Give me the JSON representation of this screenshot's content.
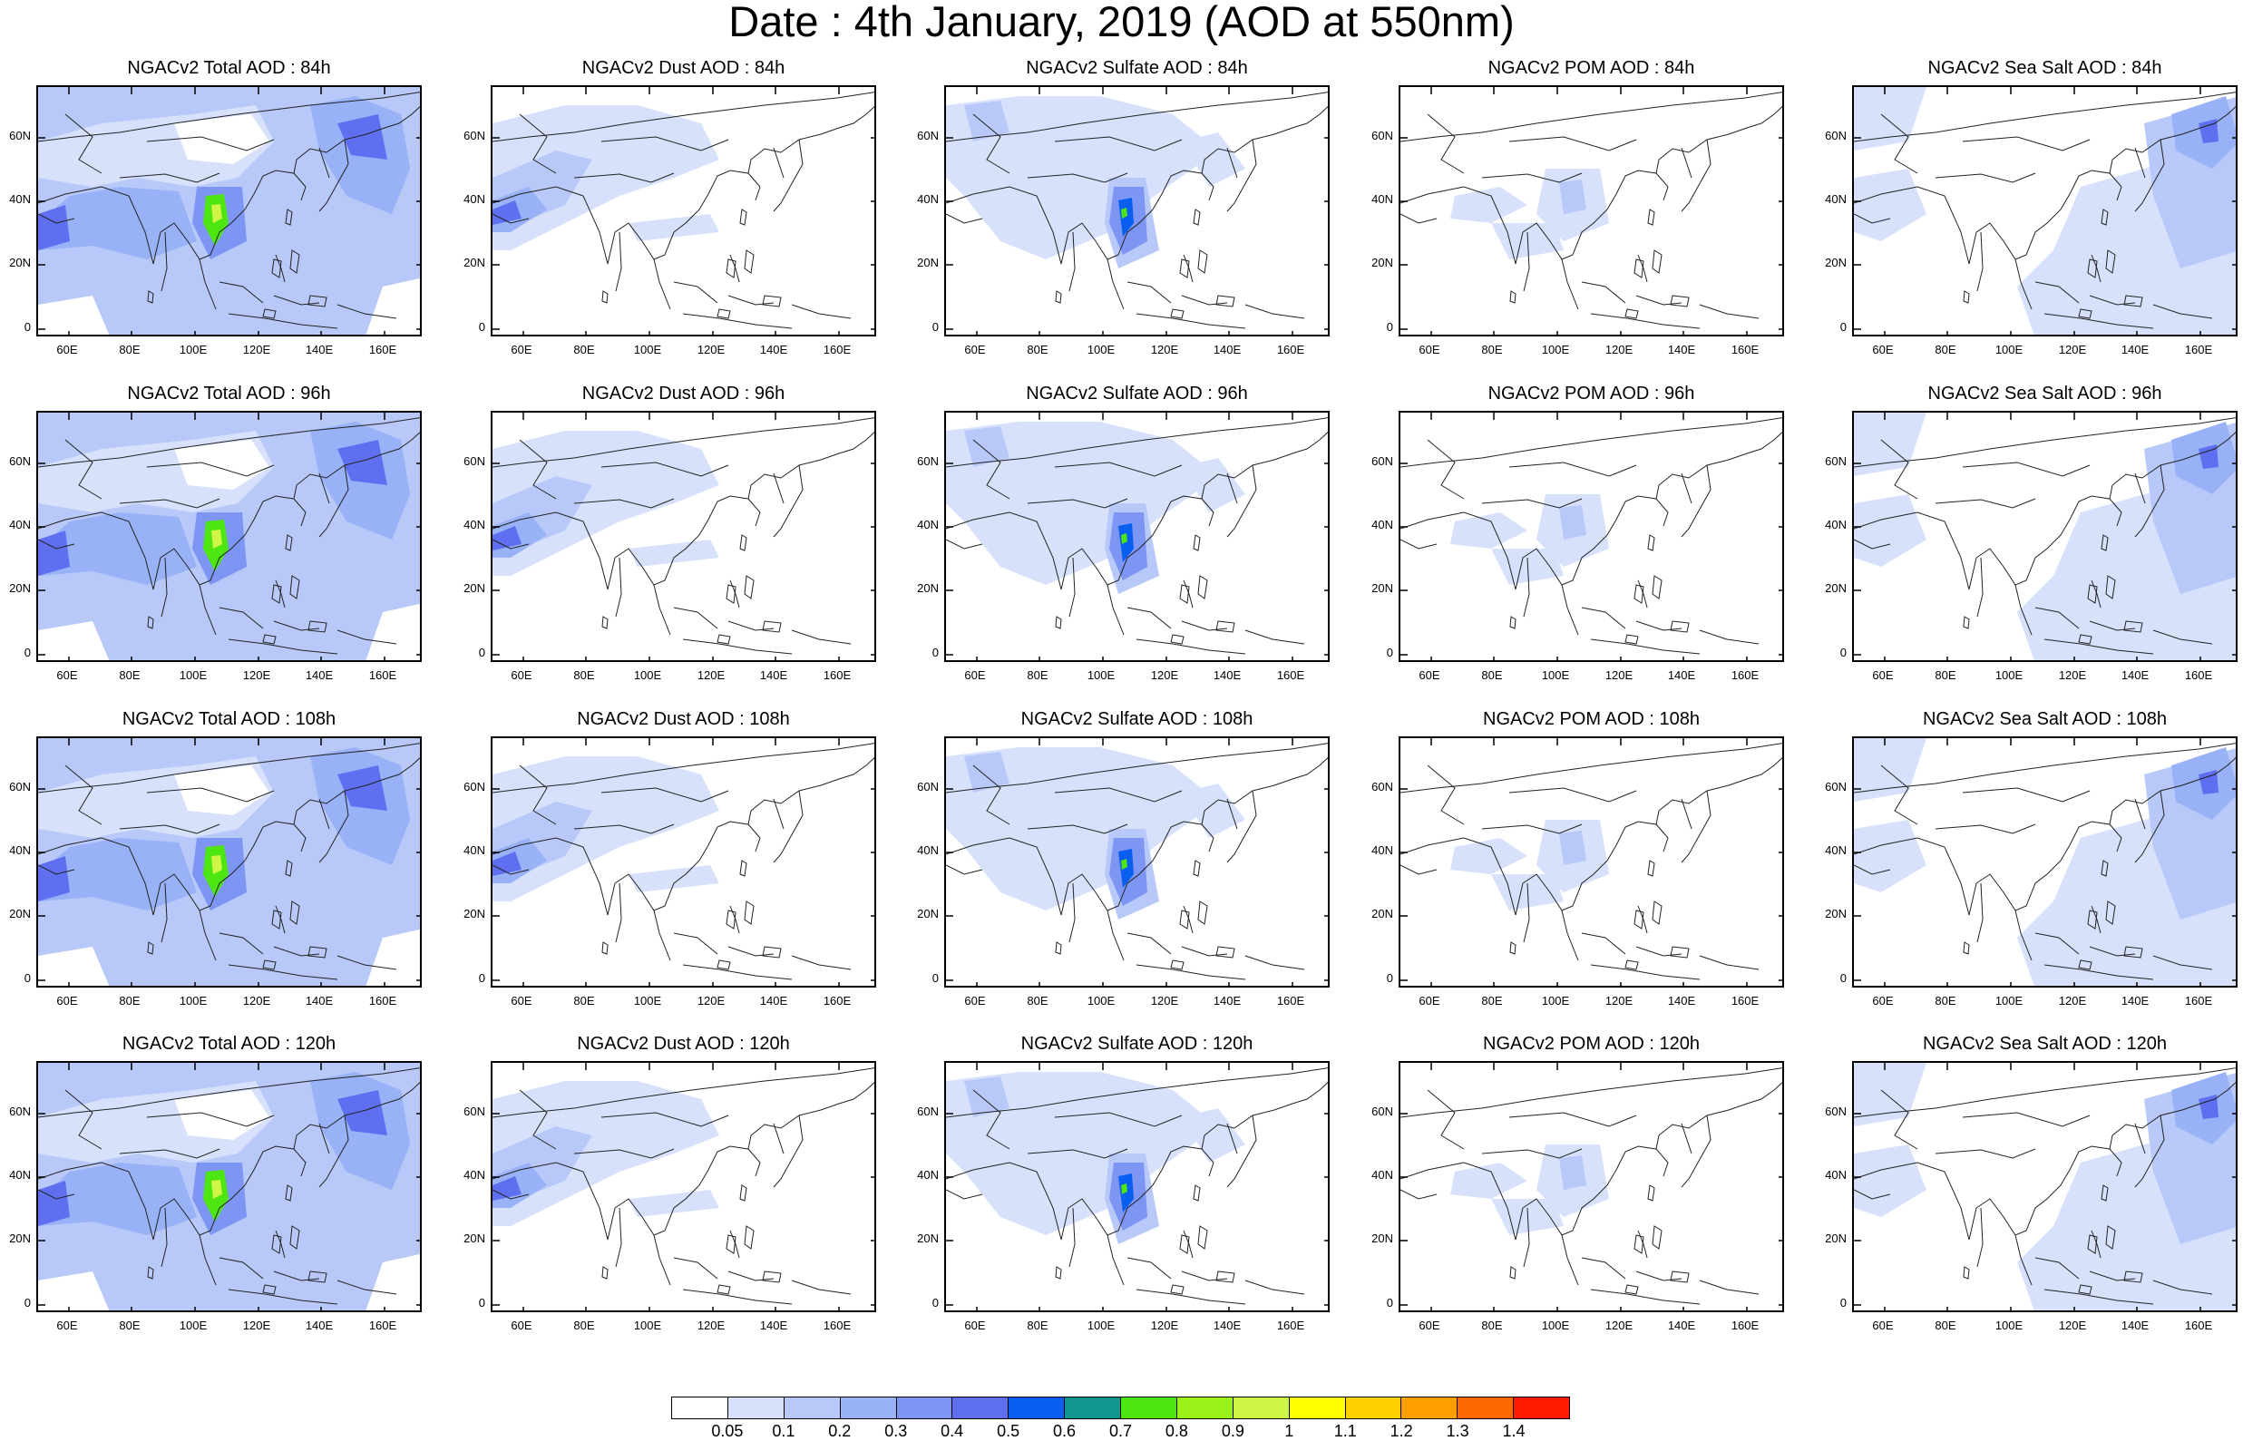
{
  "title": "Date : 4th January, 2019 (AOD at 550nm)",
  "lat_labels": [
    "60N",
    "40N",
    "20N",
    "0"
  ],
  "lon_labels": [
    "60E",
    "80E",
    "100E",
    "120E",
    "140E",
    "160E"
  ],
  "panels": [
    {
      "title": "NGACv2 Total AOD : 84h",
      "species": "total"
    },
    {
      "title": "NGACv2 Dust AOD : 84h",
      "species": "dust"
    },
    {
      "title": "NGACv2 Sulfate AOD : 84h",
      "species": "sulfate"
    },
    {
      "title": "NGACv2 POM AOD : 84h",
      "species": "pom"
    },
    {
      "title": "NGACv2 Sea Salt AOD : 84h",
      "species": "seasalt"
    },
    {
      "title": "NGACv2 Total AOD : 96h",
      "species": "total"
    },
    {
      "title": "NGACv2 Dust AOD : 96h",
      "species": "dust"
    },
    {
      "title": "NGACv2 Sulfate AOD : 96h",
      "species": "sulfate"
    },
    {
      "title": "NGACv2 POM AOD : 96h",
      "species": "pom"
    },
    {
      "title": "NGACv2 Sea Salt AOD : 96h",
      "species": "seasalt"
    },
    {
      "title": "NGACv2 Total AOD : 108h",
      "species": "total"
    },
    {
      "title": "NGACv2 Dust AOD : 108h",
      "species": "dust"
    },
    {
      "title": "NGACv2 Sulfate AOD : 108h",
      "species": "sulfate"
    },
    {
      "title": "NGACv2 POM AOD : 108h",
      "species": "pom"
    },
    {
      "title": "NGACv2 Sea Salt AOD : 108h",
      "species": "seasalt"
    },
    {
      "title": "NGACv2 Total AOD : 120h",
      "species": "total"
    },
    {
      "title": "NGACv2 Dust AOD : 120h",
      "species": "dust"
    },
    {
      "title": "NGACv2 Sulfate AOD : 120h",
      "species": "sulfate"
    },
    {
      "title": "NGACv2 POM AOD : 120h",
      "species": "pom"
    },
    {
      "title": "NGACv2 Sea Salt  AOD : 120h",
      "species": "seasalt"
    }
  ],
  "colorbar": {
    "colors": [
      "#ffffff",
      "#d7e1fb",
      "#b8c9f9",
      "#98b1f7",
      "#7d95f3",
      "#5f6ff0",
      "#0a5ff0",
      "#109591",
      "#4ee612",
      "#9bf21a",
      "#cff547",
      "#ffff00",
      "#ffd000",
      "#ff9f00",
      "#ff6a00",
      "#ff1a00"
    ],
    "labels": [
      "0.05",
      "0.1",
      "0.2",
      "0.3",
      "0.4",
      "0.5",
      "0.6",
      "0.7",
      "0.8",
      "0.9",
      "1",
      "1.1",
      "1.2",
      "1.3",
      "1.4"
    ]
  }
}
